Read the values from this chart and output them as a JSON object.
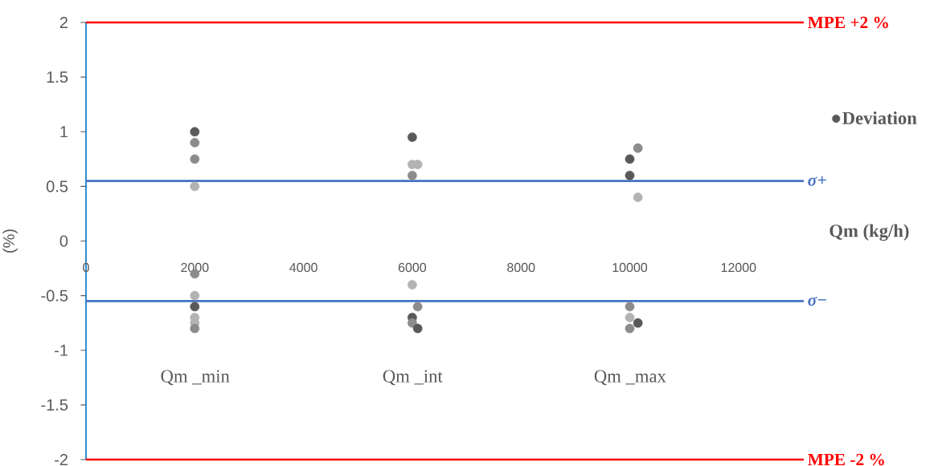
{
  "chart_data": {
    "type": "scatter",
    "xlabel": "Qm (kg/h)",
    "ylabel": "(%)",
    "xlim": [
      0,
      13200
    ],
    "xticks": [
      0,
      2000,
      4000,
      6000,
      8000,
      10000,
      12000
    ],
    "ylim": [
      -2,
      2
    ],
    "yticks": [
      -2,
      -1.5,
      -1,
      -0.5,
      0,
      0.5,
      1,
      1.5,
      2
    ],
    "series": [
      {
        "name": "Deviation",
        "color": "#595959",
        "x": [
          2000,
          2000,
          2000,
          2000,
          2000,
          2000,
          2000,
          2000,
          2000,
          2000,
          6000,
          6000,
          6100,
          6000,
          6000,
          6100,
          6000,
          6000,
          6100,
          10150,
          10000,
          10000,
          10150,
          10000,
          10000,
          10150,
          10000
        ],
        "values": [
          1.0,
          0.9,
          0.75,
          0.5,
          -0.3,
          -0.5,
          -0.6,
          -0.7,
          -0.75,
          -0.8,
          0.95,
          0.7,
          0.7,
          0.6,
          -0.4,
          -0.6,
          -0.7,
          -0.75,
          -0.8,
          0.85,
          0.75,
          0.6,
          0.4,
          -0.6,
          -0.7,
          -0.75,
          -0.8
        ],
        "colors": [
          "#595959",
          "#8c8c8c",
          "#8c8c8c",
          "#b3b3b3",
          "#8c8c8c",
          "#b3b3b3",
          "#595959",
          "#b3b3b3",
          "#b3b3b3",
          "#8c8c8c",
          "#595959",
          "#b3b3b3",
          "#b3b3b3",
          "#8c8c8c",
          "#b3b3b3",
          "#8c8c8c",
          "#595959",
          "#8c8c8c",
          "#595959",
          "#8c8c8c",
          "#595959",
          "#595959",
          "#b3b3b3",
          "#8c8c8c",
          "#b3b3b3",
          "#595959",
          "#8c8c8c"
        ]
      }
    ],
    "marker": "circle",
    "legend": "right",
    "ref_lines": [
      {
        "axis": "y",
        "value": 2,
        "label": "MPE +2 %",
        "color": "#ff0000"
      },
      {
        "axis": "y",
        "value": -2,
        "label": "MPE -2 %",
        "color": "#ff0000"
      },
      {
        "axis": "y",
        "value": 0.55,
        "label": "*σ*+",
        "color": "#4472c4"
      },
      {
        "axis": "y",
        "value": -0.55,
        "label": "*σ*−",
        "color": "#4472c4"
      }
    ],
    "annotations": [
      "Qm _min",
      "Qm _int",
      "Qm _max"
    ]
  }
}
